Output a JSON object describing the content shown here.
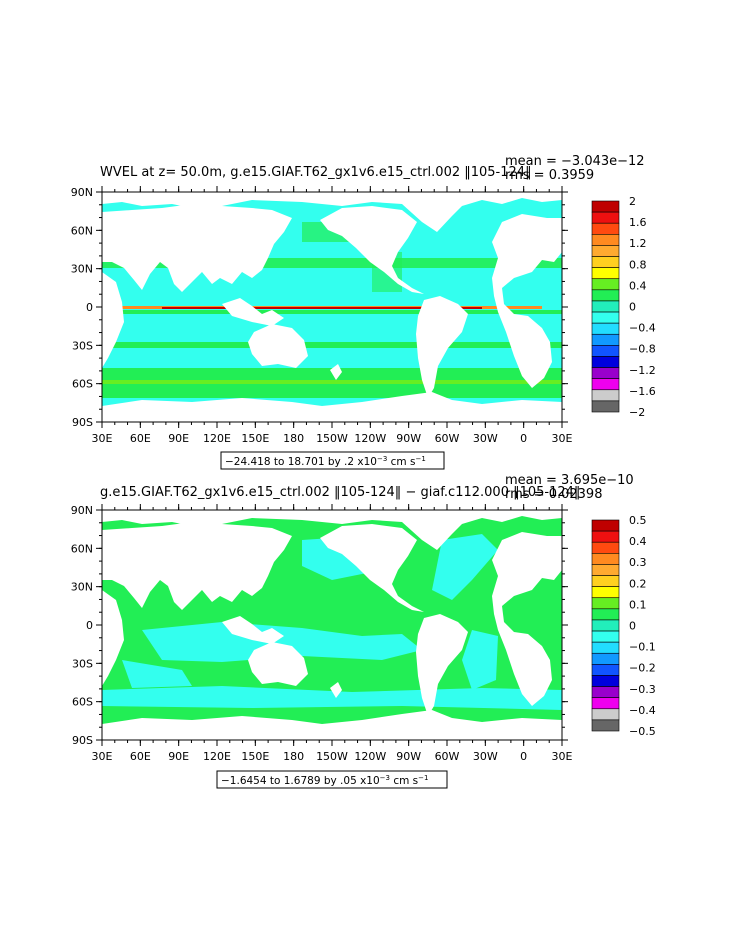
{
  "panels": [
    {
      "title": "WVEL at z=  50.0m, g.e15.GIAF.T62_gx1v6.e15_ctrl.002 ‖105-124‖",
      "mean": "mean = −3.043e−12",
      "rms": "rms = 0.3959",
      "lat_labels": [
        "90N",
        "60N",
        "30N",
        "0",
        "30S",
        "60S",
        "90S"
      ],
      "lon_labels": [
        "30E",
        "60E",
        "90E",
        "120E",
        "150E",
        "180",
        "150W",
        "120W",
        "90W",
        "60W",
        "30W",
        "0",
        "30E"
      ],
      "colorbar_labels": [
        "2",
        "1.6",
        "1.2",
        "0.8",
        "0.4",
        "0",
        "−0.4",
        "−0.8",
        "−1.2",
        "−1.6",
        "−2"
      ],
      "colorbar_colors": [
        "#bf0000",
        "#ee1010",
        "#ff4a10",
        "#ff8a20",
        "#ffaa30",
        "#ffd020",
        "#ffff00",
        "#66ee22",
        "#22ee55",
        "#22eebb",
        "#33ffee",
        "#22ddff",
        "#1199ff",
        "#1155ff",
        "#0000dd",
        "#9900cc",
        "#ee00ee",
        "#cccccc",
        "#666666"
      ],
      "range_text": "−24.418 to 18.701 by .2 x10",
      "range_exp": "−3",
      "range_units": " cm s",
      "range_units_exp": "−1"
    },
    {
      "title": "g.e15.GIAF.T62_gx1v6.e15_ctrl.002 ‖105-124‖ − giaf.c112.000 ‖105-124‖",
      "mean": "mean = 3.695e−10",
      "rms": "rms = 0.02398",
      "lat_labels": [
        "90N",
        "60N",
        "30N",
        "0",
        "30S",
        "60S",
        "90S"
      ],
      "lon_labels": [
        "30E",
        "60E",
        "90E",
        "120E",
        "150E",
        "180",
        "150W",
        "120W",
        "90W",
        "60W",
        "30W",
        "0",
        "30E"
      ],
      "colorbar_labels": [
        "0.5",
        "0.4",
        "0.3",
        "0.2",
        "0.1",
        "0",
        "−0.1",
        "−0.2",
        "−0.3",
        "−0.4",
        "−0.5"
      ],
      "colorbar_colors": [
        "#bf0000",
        "#ee1010",
        "#ff4a10",
        "#ff8a20",
        "#ffaa30",
        "#ffd020",
        "#ffff00",
        "#66ee22",
        "#22ee55",
        "#22eebb",
        "#33ffee",
        "#22ddff",
        "#1199ff",
        "#1155ff",
        "#0000dd",
        "#9900cc",
        "#ee00ee",
        "#cccccc",
        "#666666"
      ],
      "range_text": "−1.6454 to 1.6789 by .05 x10",
      "range_exp": "−3",
      "range_units": " cm s",
      "range_units_exp": "−1"
    }
  ]
}
